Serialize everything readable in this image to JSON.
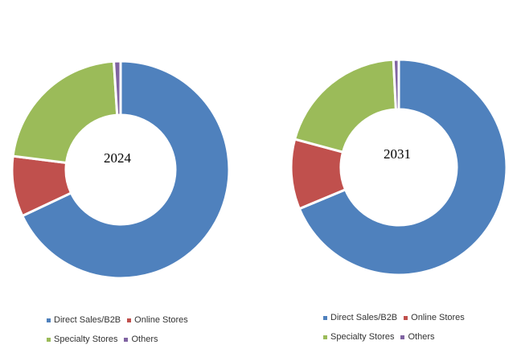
{
  "colors": {
    "direct": "#4F81BD",
    "online": "#C0504D",
    "specialty": "#9BBB59",
    "others": "#8064A2",
    "separator": "#ffffff"
  },
  "chart_data": [
    {
      "type": "pie",
      "subtype": "donut",
      "center_label": "2024",
      "categories": [
        "Direct Sales/B2B",
        "Online Stores",
        "Specialty Stores",
        "Others"
      ],
      "values": [
        68.0,
        9.0,
        22.0,
        1.0
      ],
      "unit": "percent",
      "legend": [
        "Direct Sales/B2B",
        "Online Stores",
        "Specialty Stores",
        "Others"
      ],
      "legend_position": "bottom"
    },
    {
      "type": "pie",
      "subtype": "donut",
      "center_label": "2031",
      "categories": [
        "Direct Sales/B2B",
        "Online Stores",
        "Specialty Stores",
        "Others"
      ],
      "values": [
        68.7,
        10.5,
        20.0,
        0.8
      ],
      "unit": "percent",
      "legend": [
        "Direct Sales/B2B",
        "Online Stores",
        "Specialty Stores",
        "Others"
      ],
      "legend_position": "bottom"
    }
  ]
}
